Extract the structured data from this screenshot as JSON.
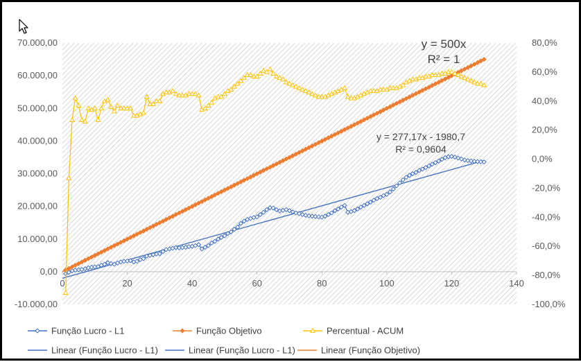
{
  "chart_data": {
    "type": "line",
    "primary_y": {
      "min": -10000,
      "max": 70000,
      "step": 10000,
      "tick_labels": [
        "-10.000,00",
        "0,00",
        "10.000,00",
        "20.000,00",
        "30.000,00",
        "40.000,00",
        "50.000,00",
        "60.000,00",
        "70.000,00"
      ]
    },
    "secondary_y": {
      "min": -100,
      "max": 80,
      "step": 20,
      "tick_labels": [
        "-100,0%",
        "-80,0%",
        "-60,0%",
        "-40,0%",
        "-20,0%",
        "0,0%",
        "20,0%",
        "40,0%",
        "60,0%",
        "80,0%"
      ]
    },
    "x_axis": {
      "min": 0,
      "max": 140,
      "step": 20,
      "tick_labels": [
        "0",
        "20",
        "40",
        "60",
        "80",
        "100",
        "120",
        "140"
      ]
    },
    "plot_background": "diagonal-hatch-light-grey",
    "series": [
      {
        "name": "Função Lucro - L1",
        "axis": "primary",
        "color": "#4472c4",
        "marker": "diamond",
        "points": [
          [
            1,
            -600
          ],
          [
            2,
            -200
          ],
          [
            3,
            300
          ],
          [
            4,
            500
          ],
          [
            5,
            600
          ],
          [
            6,
            700
          ],
          [
            7,
            900
          ],
          [
            8,
            1200
          ],
          [
            9,
            1400
          ],
          [
            10,
            1500
          ],
          [
            11,
            1600
          ],
          [
            12,
            2000
          ],
          [
            13,
            2300
          ],
          [
            14,
            2800
          ],
          [
            15,
            2500
          ],
          [
            16,
            2300
          ],
          [
            17,
            2700
          ],
          [
            18,
            3000
          ],
          [
            19,
            3200
          ],
          [
            20,
            3300
          ],
          [
            21,
            3400
          ],
          [
            22,
            3000
          ],
          [
            23,
            3200
          ],
          [
            24,
            3700
          ],
          [
            25,
            4000
          ],
          [
            26,
            4800
          ],
          [
            27,
            5000
          ],
          [
            28,
            5200
          ],
          [
            29,
            5400
          ],
          [
            30,
            5500
          ],
          [
            31,
            6200
          ],
          [
            32,
            6800
          ],
          [
            33,
            7000
          ],
          [
            34,
            7200
          ],
          [
            35,
            7400
          ],
          [
            36,
            7300
          ],
          [
            37,
            7400
          ],
          [
            38,
            7500
          ],
          [
            39,
            7700
          ],
          [
            40,
            7800
          ],
          [
            41,
            8000
          ],
          [
            42,
            8300
          ],
          [
            43,
            7000
          ],
          [
            44,
            7500
          ],
          [
            45,
            8000
          ],
          [
            46,
            8800
          ],
          [
            47,
            9300
          ],
          [
            48,
            10000
          ],
          [
            49,
            10500
          ],
          [
            50,
            11000
          ],
          [
            51,
            11700
          ],
          [
            52,
            12200
          ],
          [
            53,
            13000
          ],
          [
            54,
            13700
          ],
          [
            55,
            14800
          ],
          [
            56,
            15500
          ],
          [
            57,
            16000
          ],
          [
            58,
            16300
          ],
          [
            59,
            16600
          ],
          [
            60,
            16800
          ],
          [
            61,
            17500
          ],
          [
            62,
            18200
          ],
          [
            63,
            19000
          ],
          [
            64,
            19600
          ],
          [
            65,
            19500
          ],
          [
            66,
            19000
          ],
          [
            67,
            18600
          ],
          [
            68,
            18800
          ],
          [
            69,
            19000
          ],
          [
            70,
            18700
          ],
          [
            71,
            18300
          ],
          [
            72,
            18000
          ],
          [
            73,
            17800
          ],
          [
            74,
            17500
          ],
          [
            75,
            17300
          ],
          [
            76,
            17100
          ],
          [
            77,
            17000
          ],
          [
            78,
            16900
          ],
          [
            79,
            16800
          ],
          [
            80,
            16700
          ],
          [
            81,
            17000
          ],
          [
            82,
            17500
          ],
          [
            83,
            18000
          ],
          [
            84,
            18700
          ],
          [
            85,
            19200
          ],
          [
            86,
            19800
          ],
          [
            87,
            20300
          ],
          [
            88,
            18200
          ],
          [
            89,
            18400
          ],
          [
            90,
            18700
          ],
          [
            91,
            19200
          ],
          [
            92,
            19800
          ],
          [
            93,
            20300
          ],
          [
            94,
            20800
          ],
          [
            95,
            21300
          ],
          [
            96,
            21900
          ],
          [
            97,
            22400
          ],
          [
            98,
            22800
          ],
          [
            99,
            23300
          ],
          [
            100,
            23700
          ],
          [
            101,
            24400
          ],
          [
            102,
            25300
          ],
          [
            103,
            26300
          ],
          [
            104,
            27200
          ],
          [
            105,
            28100
          ],
          [
            106,
            28900
          ],
          [
            107,
            29500
          ],
          [
            108,
            30000
          ],
          [
            109,
            30400
          ],
          [
            110,
            31000
          ],
          [
            111,
            31400
          ],
          [
            112,
            31900
          ],
          [
            113,
            32400
          ],
          [
            114,
            32900
          ],
          [
            115,
            33400
          ],
          [
            116,
            33900
          ],
          [
            117,
            34400
          ],
          [
            118,
            34900
          ],
          [
            119,
            35200
          ],
          [
            120,
            35300
          ],
          [
            121,
            35100
          ],
          [
            122,
            34800
          ],
          [
            123,
            34500
          ],
          [
            124,
            34200
          ],
          [
            125,
            34000
          ],
          [
            126,
            33900
          ],
          [
            127,
            33800
          ],
          [
            128,
            33700
          ],
          [
            129,
            33650
          ],
          [
            130,
            33600
          ]
        ]
      },
      {
        "name": "Função Objetivo",
        "axis": "primary",
        "color": "#ed7d31",
        "marker": "diamond",
        "points": [
          [
            1,
            500
          ],
          [
            130,
            65000
          ]
        ]
      },
      {
        "name": "Percentual - ACUM",
        "axis": "secondary",
        "color": "#ffc000",
        "marker": "triangle",
        "points": [
          [
            1,
            -92
          ],
          [
            2,
            -13
          ],
          [
            3,
            27
          ],
          [
            4,
            42
          ],
          [
            5,
            37
          ],
          [
            6,
            27
          ],
          [
            7,
            26
          ],
          [
            8,
            35
          ],
          [
            9,
            34
          ],
          [
            10,
            35
          ],
          [
            11,
            27
          ],
          [
            12,
            35
          ],
          [
            13,
            40
          ],
          [
            14,
            41
          ],
          [
            15,
            36
          ],
          [
            16,
            33
          ],
          [
            17,
            37
          ],
          [
            18,
            35
          ],
          [
            19,
            35
          ],
          [
            20,
            35
          ],
          [
            21,
            35
          ],
          [
            22,
            30
          ],
          [
            23,
            30
          ],
          [
            24,
            31
          ],
          [
            25,
            32
          ],
          [
            26,
            43
          ],
          [
            27,
            38
          ],
          [
            28,
            38
          ],
          [
            29,
            40
          ],
          [
            30,
            40
          ],
          [
            31,
            45
          ],
          [
            32,
            46
          ],
          [
            33,
            46
          ],
          [
            34,
            47
          ],
          [
            35,
            45
          ],
          [
            36,
            44
          ],
          [
            37,
            44
          ],
          [
            38,
            44
          ],
          [
            39,
            45
          ],
          [
            40,
            45
          ],
          [
            41,
            45
          ],
          [
            42,
            44
          ],
          [
            43,
            34
          ],
          [
            44,
            35
          ],
          [
            45,
            37
          ],
          [
            46,
            39
          ],
          [
            47,
            42
          ],
          [
            48,
            43
          ],
          [
            49,
            43
          ],
          [
            50,
            45
          ],
          [
            51,
            47
          ],
          [
            52,
            48
          ],
          [
            53,
            50
          ],
          [
            54,
            52
          ],
          [
            55,
            54
          ],
          [
            56,
            56
          ],
          [
            57,
            58
          ],
          [
            58,
            58
          ],
          [
            59,
            57
          ],
          [
            60,
            57
          ],
          [
            61,
            59
          ],
          [
            62,
            61
          ],
          [
            63,
            60
          ],
          [
            64,
            62
          ],
          [
            65,
            59
          ],
          [
            66,
            57
          ],
          [
            67,
            56
          ],
          [
            68,
            55
          ],
          [
            69,
            53
          ],
          [
            70,
            52
          ],
          [
            71,
            51
          ],
          [
            72,
            50
          ],
          [
            73,
            49
          ],
          [
            74,
            48
          ],
          [
            75,
            47
          ],
          [
            76,
            46
          ],
          [
            77,
            45
          ],
          [
            78,
            44
          ],
          [
            79,
            43
          ],
          [
            80,
            43
          ],
          [
            81,
            43
          ],
          [
            82,
            44
          ],
          [
            83,
            45
          ],
          [
            84,
            46
          ],
          [
            85,
            47
          ],
          [
            86,
            48
          ],
          [
            87,
            49
          ],
          [
            88,
            43
          ],
          [
            89,
            42
          ],
          [
            90,
            42
          ],
          [
            91,
            43
          ],
          [
            92,
            44
          ],
          [
            93,
            45
          ],
          [
            94,
            46
          ],
          [
            95,
            47
          ],
          [
            96,
            47
          ],
          [
            97,
            47
          ],
          [
            98,
            48
          ],
          [
            99,
            48
          ],
          [
            100,
            48
          ],
          [
            101,
            49
          ],
          [
            102,
            49
          ],
          [
            103,
            49
          ],
          [
            104,
            50
          ],
          [
            105,
            51
          ],
          [
            106,
            53
          ],
          [
            107,
            54
          ],
          [
            108,
            55
          ],
          [
            109,
            55
          ],
          [
            110,
            56
          ],
          [
            111,
            56
          ],
          [
            112,
            57
          ],
          [
            113,
            57
          ],
          [
            114,
            58
          ],
          [
            115,
            58
          ],
          [
            116,
            58
          ],
          [
            117,
            59
          ],
          [
            118,
            59
          ],
          [
            119,
            60
          ],
          [
            120,
            60
          ],
          [
            121,
            59
          ],
          [
            122,
            58
          ],
          [
            123,
            57
          ],
          [
            124,
            56
          ],
          [
            125,
            55
          ],
          [
            126,
            54
          ],
          [
            127,
            53
          ],
          [
            128,
            52
          ],
          [
            129,
            52
          ],
          [
            130,
            51
          ]
        ]
      }
    ],
    "trendlines": [
      {
        "name": "Linear (Função Lucro - L1)",
        "color": "#4472c4",
        "slope": 277.17,
        "intercept": -1980.7,
        "x_range": [
          0,
          130
        ],
        "equation": "y = 277,17x - 1980,7",
        "r2": "R² = 0,9604"
      },
      {
        "name": "Linear (Função Lucro - L1)",
        "color": "#4472c4"
      },
      {
        "name": "Linear (Função Objetivo)",
        "color": "#ed7d31",
        "slope": 500,
        "intercept": 0,
        "x_range": [
          0,
          130
        ],
        "equation": "y = 500x",
        "r2": "R² = 1"
      }
    ],
    "legend": {
      "placement": "bottom",
      "entries": [
        {
          "label": "Função Lucro - L1",
          "color": "#4472c4",
          "marker": "diamond"
        },
        {
          "label": "Função Objetivo",
          "color": "#ed7d31",
          "marker": "diamond"
        },
        {
          "label": "Percentual - ACUM",
          "color": "#ffc000",
          "marker": "triangle"
        },
        {
          "label": "Linear (Função Lucro - L1)",
          "color": "#4472c4",
          "marker": "line"
        },
        {
          "label": "Linear (Função Lucro - L1)",
          "color": "#4472c4",
          "marker": "line"
        },
        {
          "label": "Linear (Função Objetivo)",
          "color": "#ed7d31",
          "marker": "line"
        }
      ]
    }
  },
  "cursor": {
    "icon": "mouse-pointer-icon"
  }
}
